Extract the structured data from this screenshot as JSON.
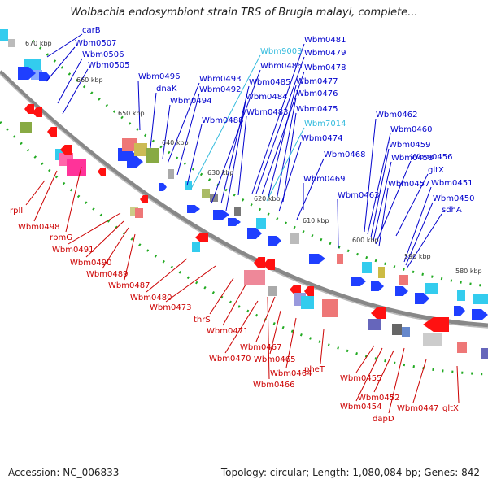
{
  "title": "Wolbachia endosymbiont strain TRS of Brugia malayi, complete...",
  "footer": {
    "accession": "Accession: NC_006833",
    "summary": "Topology: circular; Length: 1,080,084 bp; Genes: 842"
  },
  "colors": {
    "forward_label": "#0000cc",
    "reverse_label": "#cc0000",
    "highlight_label": "#33bbdd",
    "backbone": "#888888",
    "tick": "#22aa22"
  },
  "kbp_ticks": [
    "670 kbp",
    "660 kbp",
    "650 kbp",
    "640 kbp",
    "630 kbp",
    "620 kbp",
    "610 kbp",
    "600 kbp",
    "590 kbp",
    "580 kbp"
  ],
  "top_labels": [
    {
      "text": "carB",
      "color": "#0000cc"
    },
    {
      "text": "Wbm0507",
      "color": "#0000cc"
    },
    {
      "text": "Wbm0506",
      "color": "#0000cc"
    },
    {
      "text": "Wbm0505",
      "color": "#0000cc"
    },
    {
      "text": "Wbm0496",
      "color": "#0000cc"
    },
    {
      "text": "dnaK",
      "color": "#0000cc"
    },
    {
      "text": "Wbm0494",
      "color": "#0000cc"
    },
    {
      "text": "Wbm0493",
      "color": "#0000cc"
    },
    {
      "text": "Wbm0492",
      "color": "#0000cc"
    },
    {
      "text": "Wbm0488",
      "color": "#0000cc"
    },
    {
      "text": "Wbm9003",
      "color": "#33bbdd"
    },
    {
      "text": "Wbm0486",
      "color": "#0000cc"
    },
    {
      "text": "Wbm0485",
      "color": "#0000cc"
    },
    {
      "text": "Wbm0484",
      "color": "#0000cc"
    },
    {
      "text": "Wbm0483",
      "color": "#0000cc"
    },
    {
      "text": "Wbm0481",
      "color": "#0000cc"
    },
    {
      "text": "Wbm0479",
      "color": "#0000cc"
    },
    {
      "text": "Wbm0478",
      "color": "#0000cc"
    },
    {
      "text": "Wbm0477",
      "color": "#0000cc"
    },
    {
      "text": "Wbm0476",
      "color": "#0000cc"
    },
    {
      "text": "Wbm0475",
      "color": "#0000cc"
    },
    {
      "text": "Wbm7014",
      "color": "#33bbdd"
    },
    {
      "text": "Wbm0474",
      "color": "#0000cc"
    },
    {
      "text": "Wbm0468",
      "color": "#0000cc"
    },
    {
      "text": "Wbm0469",
      "color": "#0000cc"
    },
    {
      "text": "Wbm0463",
      "color": "#0000cc"
    },
    {
      "text": "Wbm0462",
      "color": "#0000cc"
    },
    {
      "text": "Wbm0460",
      "color": "#0000cc"
    },
    {
      "text": "Wbm0459",
      "color": "#0000cc"
    },
    {
      "text": "Wbm0458",
      "color": "#0000cc"
    },
    {
      "text": "Wbm0456",
      "color": "#0000cc"
    },
    {
      "text": "Wbm0457",
      "color": "#0000cc"
    },
    {
      "text": "gltX",
      "color": "#0000cc"
    },
    {
      "text": "Wbm0451",
      "color": "#0000cc"
    },
    {
      "text": "Wbm0450",
      "color": "#0000cc"
    },
    {
      "text": "sdhA",
      "color": "#0000cc"
    }
  ],
  "bottom_labels": [
    {
      "text": "rplI",
      "color": "#cc0000"
    },
    {
      "text": "Wbm0498",
      "color": "#cc0000"
    },
    {
      "text": "rpmG",
      "color": "#cc0000"
    },
    {
      "text": "Wbm0491",
      "color": "#cc0000"
    },
    {
      "text": "Wbm0490",
      "color": "#cc0000"
    },
    {
      "text": "Wbm0489",
      "color": "#cc0000"
    },
    {
      "text": "Wbm0487",
      "color": "#cc0000"
    },
    {
      "text": "Wbm0480",
      "color": "#cc0000"
    },
    {
      "text": "Wbm0473",
      "color": "#cc0000"
    },
    {
      "text": "thrS",
      "color": "#cc0000"
    },
    {
      "text": "Wbm0471",
      "color": "#cc0000"
    },
    {
      "text": "Wbm0467",
      "color": "#cc0000"
    },
    {
      "text": "Wbm0470",
      "color": "#cc0000"
    },
    {
      "text": "Wbm0465",
      "color": "#cc0000"
    },
    {
      "text": "Wbm0464",
      "color": "#cc0000"
    },
    {
      "text": "Wbm0466",
      "color": "#cc0000"
    },
    {
      "text": "pheT",
      "color": "#cc0000"
    },
    {
      "text": "Wbm0455",
      "color": "#cc0000"
    },
    {
      "text": "Wbm0452",
      "color": "#cc0000"
    },
    {
      "text": "Wbm0454",
      "color": "#cc0000"
    },
    {
      "text": "dapD",
      "color": "#cc0000"
    },
    {
      "text": "Wbm0447",
      "color": "#cc0000"
    },
    {
      "text": "gltX",
      "color": "#cc0000"
    }
  ]
}
